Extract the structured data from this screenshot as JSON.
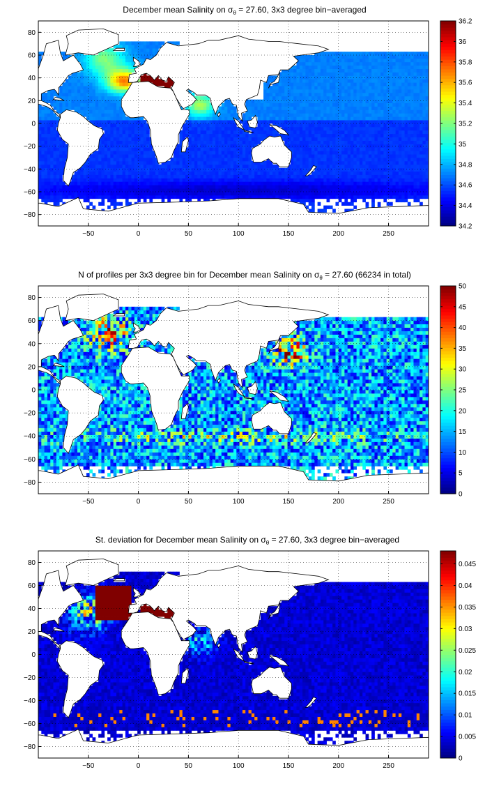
{
  "figure": {
    "description_free": true
  },
  "chart_data": [
    {
      "type": "heatmap",
      "variable": "salinity",
      "title_prefix": "December mean Salinity on ",
      "title_sigma": "σ",
      "title_sub": "θ",
      "title_suffix": " = 27.60, 3x3 degree bin−averaged",
      "x_ticks": [
        "−50",
        "0",
        "50",
        "100",
        "150",
        "200",
        "250"
      ],
      "x_tick_values": [
        -50,
        0,
        50,
        100,
        150,
        200,
        250
      ],
      "y_ticks": [
        "80",
        "60",
        "40",
        "20",
        "0",
        "−20",
        "−40",
        "−60",
        "−80"
      ],
      "y_tick_values": [
        80,
        60,
        40,
        20,
        0,
        -20,
        -40,
        -60,
        -80
      ],
      "xlim": [
        -100,
        290
      ],
      "ylim": [
        -90,
        90
      ],
      "grid": true,
      "bin_size_deg": 3,
      "colorbar_ticks": [
        "34.2",
        "34.4",
        "34.6",
        "34.8",
        "35",
        "35.2",
        "35.4",
        "35.6",
        "35.8",
        "36",
        "36.2"
      ],
      "colorbar_values": [
        34.2,
        34.4,
        34.6,
        34.8,
        35.0,
        35.2,
        35.4,
        35.6,
        35.8,
        36.0,
        36.2
      ],
      "clim": [
        34.2,
        36.2
      ],
      "colormap": "jet"
    },
    {
      "type": "heatmap",
      "variable": "profiles",
      "title_prefix": "N of profiles per 3x3 degree bin for December mean Salinity on ",
      "title_sigma": "σ",
      "title_sub": "θ",
      "title_suffix": " = 27.60 (66234 in total)",
      "total_profiles": 66234,
      "x_ticks": [
        "−50",
        "0",
        "50",
        "100",
        "150",
        "200",
        "250"
      ],
      "x_tick_values": [
        -50,
        0,
        50,
        100,
        150,
        200,
        250
      ],
      "y_ticks": [
        "80",
        "60",
        "40",
        "20",
        "0",
        "−20",
        "−40",
        "−60",
        "−80"
      ],
      "y_tick_values": [
        80,
        60,
        40,
        20,
        0,
        -20,
        -40,
        -60,
        -80
      ],
      "xlim": [
        -100,
        290
      ],
      "ylim": [
        -90,
        90
      ],
      "grid": true,
      "bin_size_deg": 3,
      "colorbar_ticks": [
        "0",
        "5",
        "10",
        "15",
        "20",
        "25",
        "30",
        "35",
        "40",
        "45",
        "50"
      ],
      "colorbar_values": [
        0,
        5,
        10,
        15,
        20,
        25,
        30,
        35,
        40,
        45,
        50
      ],
      "clim": [
        0,
        50
      ],
      "colormap": "jet"
    },
    {
      "type": "heatmap",
      "variable": "stdev",
      "title_prefix": "St. deviation for December mean Salinity on ",
      "title_sigma": "σ",
      "title_sub": "θ",
      "title_suffix": " = 27.60, 3x3 degree bin−averaged",
      "x_ticks": [
        "−50",
        "0",
        "50",
        "100",
        "150",
        "200",
        "250"
      ],
      "x_tick_values": [
        -50,
        0,
        50,
        100,
        150,
        200,
        250
      ],
      "y_ticks": [
        "80",
        "60",
        "40",
        "20",
        "0",
        "−20",
        "−40",
        "−60",
        "−80"
      ],
      "y_tick_values": [
        80,
        60,
        40,
        20,
        0,
        -20,
        -40,
        -60,
        -80
      ],
      "xlim": [
        -100,
        290
      ],
      "ylim": [
        -90,
        90
      ],
      "grid": true,
      "bin_size_deg": 3,
      "colorbar_ticks": [
        "0",
        "0.005",
        "0.01",
        "0.015",
        "0.02",
        "0.025",
        "0.03",
        "0.035",
        "0.04",
        "0.045"
      ],
      "colorbar_values": [
        0,
        0.005,
        0.01,
        0.015,
        0.02,
        0.025,
        0.03,
        0.035,
        0.04,
        0.045
      ],
      "clim": [
        0,
        0.048
      ],
      "colormap": "jet"
    }
  ]
}
